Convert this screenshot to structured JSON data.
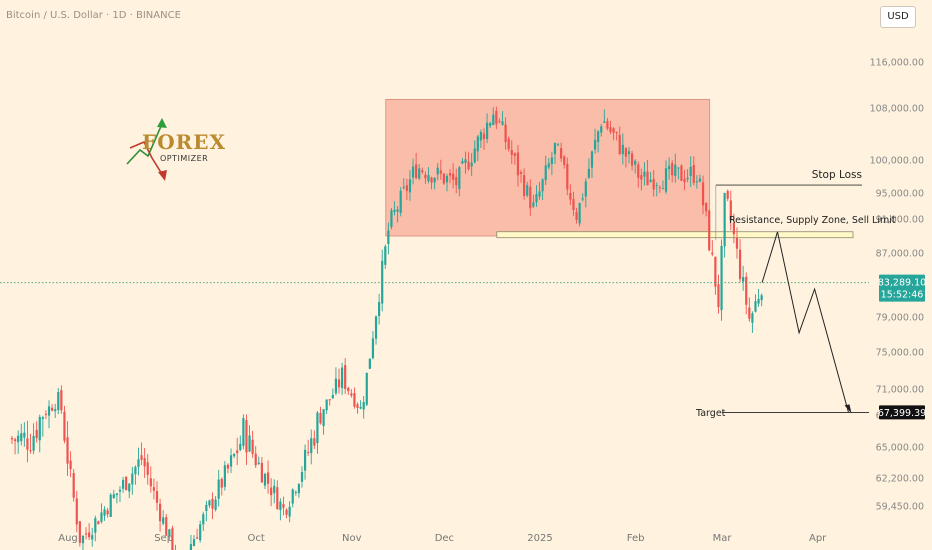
{
  "header": {
    "title": "Bitcoin / U.S. Dollar · 1D · BINANCE",
    "currency": "USD"
  },
  "logo": {
    "top": "FOREX",
    "bottom": "OPTIMIZER"
  },
  "colors": {
    "up": "#26A69A",
    "down": "#EF5350",
    "zone": "#F8B3A0",
    "background": "#FFF3DF"
  },
  "annotations": {
    "stop_loss": "Stop Loss",
    "resistance": "Resistance, Supply Zone, Sell Limit",
    "target": "Target"
  },
  "price_badges": {
    "current_price": "83,289.10",
    "countdown": "15:52:46",
    "target_price": "67,399.39"
  },
  "chart_data": {
    "type": "candlestick",
    "title": "Bitcoin / U.S. Dollar · 1D · BINANCE",
    "x_labels": [
      "Aug",
      "Sep",
      "Oct",
      "Nov",
      "Dec",
      "2025",
      "Feb",
      "Mar",
      "Apr"
    ],
    "y_ticks": [
      "116,000.00",
      "108,000.00",
      "100,000.00",
      "95,000.00",
      "91,000.00",
      "87,000.00",
      "79,000.00",
      "75,000.00",
      "71,000.00",
      "67,000.00",
      "65,000.00",
      "62,200.00",
      "59,450.00"
    ],
    "supply_zone": {
      "from_date": "2024-11-12",
      "to_date": "2025-02-25",
      "low": 89000,
      "high": 109500
    },
    "stop_loss": 96200,
    "resistance_band": {
      "low": 88800,
      "high": 89500
    },
    "current_price": 83289.1,
    "target": 67399.39,
    "projection_path": [
      {
        "date": "2025-03-14",
        "price": 83300
      },
      {
        "date": "2025-03-19",
        "price": 89500
      },
      {
        "date": "2025-03-26",
        "price": 77200
      },
      {
        "date": "2025-03-31",
        "price": 82500
      },
      {
        "date": "2025-04-11",
        "price": 67400
      }
    ],
    "anchors": [
      {
        "date": "2024-07-20",
        "price": 65500
      },
      {
        "date": "2024-07-29",
        "price": 69500
      },
      {
        "date": "2024-08-05",
        "price": 56000
      },
      {
        "date": "2024-08-25",
        "price": 64000
      },
      {
        "date": "2024-09-06",
        "price": 53500
      },
      {
        "date": "2024-09-27",
        "price": 66000
      },
      {
        "date": "2024-10-10",
        "price": 59000
      },
      {
        "date": "2024-10-29",
        "price": 72500
      },
      {
        "date": "2024-11-04",
        "price": 67800
      },
      {
        "date": "2024-11-13",
        "price": 90000
      },
      {
        "date": "2024-11-22",
        "price": 99000
      },
      {
        "date": "2024-12-05",
        "price": 96500
      },
      {
        "date": "2024-12-17",
        "price": 107500
      },
      {
        "date": "2024-12-30",
        "price": 92500
      },
      {
        "date": "2025-01-06",
        "price": 102000
      },
      {
        "date": "2025-01-13",
        "price": 91500
      },
      {
        "date": "2025-01-21",
        "price": 106500
      },
      {
        "date": "2025-02-03",
        "price": 97000
      },
      {
        "date": "2025-02-21",
        "price": 98000
      },
      {
        "date": "2025-02-28",
        "price": 80500
      },
      {
        "date": "2025-03-02",
        "price": 94500
      },
      {
        "date": "2025-03-10",
        "price": 78500
      },
      {
        "date": "2025-03-14",
        "price": 83300
      }
    ]
  }
}
